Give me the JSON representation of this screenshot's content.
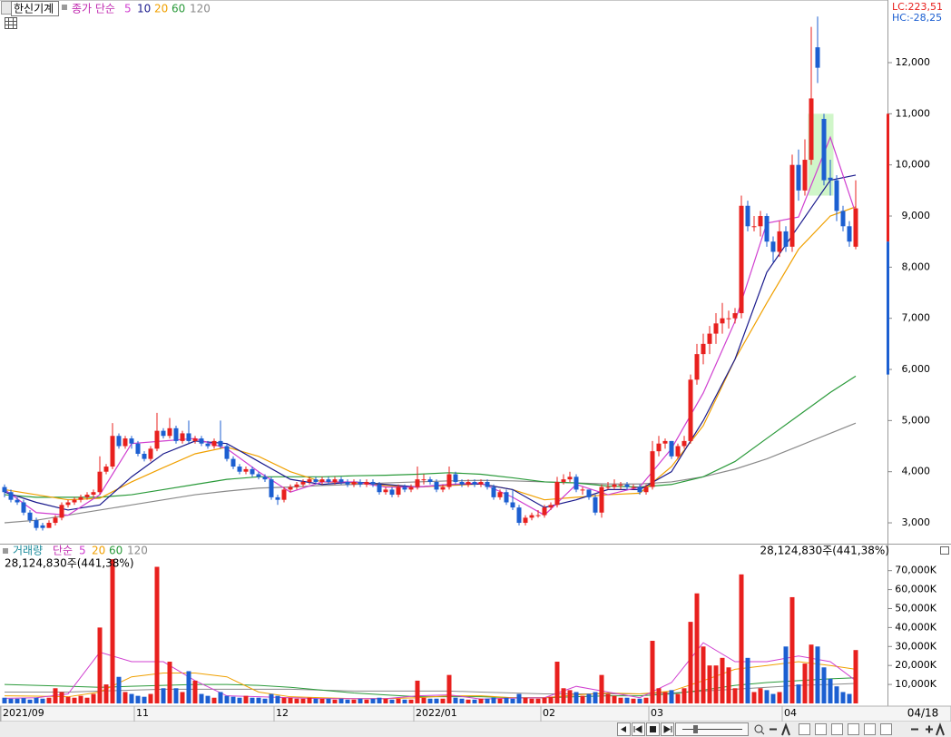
{
  "chart_data": {
    "type": "candlestick",
    "title": "한신기계",
    "ma_label": "종가 단순",
    "up_color": "#e8201e",
    "down_color": "#1c5fd1",
    "open": [
      3700,
      3600,
      3450,
      3400,
      3200,
      3050,
      2950,
      2900,
      3000,
      3100,
      3350,
      3400,
      3450,
      3500,
      3550,
      3600,
      4000,
      4100,
      4700,
      4500,
      4650,
      4550,
      4350,
      4250,
      4450,
      4800,
      4700,
      4850,
      4600,
      4750,
      4600,
      4650,
      4550,
      4500,
      4600,
      4500,
      4250,
      4100,
      4000,
      4050,
      3950,
      3900,
      3850,
      3500,
      3450,
      3650,
      3700,
      3750,
      3800,
      3850,
      3800,
      3850,
      3800,
      3850,
      3800,
      3750,
      3800,
      3750,
      3800,
      3750,
      3600,
      3650,
      3550,
      3700,
      3650,
      3700,
      3850,
      3850,
      3800,
      3650,
      3700,
      3950,
      3800,
      3750,
      3800,
      3750,
      3800,
      3700,
      3500,
      3600,
      3400,
      3300,
      3000,
      3100,
      3150,
      3150,
      3300,
      3350,
      3800,
      3850,
      3900,
      3650,
      3650,
      3500,
      3200,
      3700,
      3700,
      3750,
      3750,
      3700,
      3700,
      3600,
      3700,
      4400,
      4550,
      4600,
      4300,
      4500,
      4600,
      5800,
      6300,
      6500,
      6700,
      6900,
      7000,
      7000,
      7100,
      9200,
      8800,
      8800,
      9000,
      8500,
      8300,
      8700,
      8400,
      10000,
      9500,
      10100,
      12300,
      10900,
      9750,
      9700,
      9100,
      8800,
      8400
    ],
    "high": [
      3750,
      3650,
      3500,
      3450,
      3250,
      3100,
      3000,
      3050,
      3150,
      3400,
      3450,
      3500,
      3550,
      3600,
      3650,
      4300,
      4150,
      4950,
      4750,
      4700,
      4700,
      4600,
      4400,
      4500,
      5150,
      4850,
      5050,
      4900,
      4800,
      5000,
      4700,
      4700,
      4600,
      4650,
      5000,
      4550,
      4300,
      4150,
      4100,
      4100,
      4000,
      3950,
      3900,
      3550,
      3700,
      3750,
      3800,
      3850,
      3900,
      3900,
      3900,
      3900,
      3900,
      3900,
      3850,
      3850,
      3850,
      3850,
      3850,
      3800,
      3700,
      3700,
      3750,
      3750,
      3750,
      4100,
      3950,
      3900,
      3850,
      3750,
      4100,
      4000,
      3850,
      3850,
      3850,
      3850,
      3850,
      3750,
      3650,
      3650,
      3650,
      3350,
      3150,
      3200,
      3250,
      3350,
      3400,
      3900,
      3950,
      4000,
      3950,
      3700,
      3650,
      3550,
      3750,
      3800,
      3850,
      3800,
      3800,
      3750,
      3750,
      3750,
      4600,
      4700,
      4650,
      4600,
      4550,
      4700,
      5900,
      6500,
      6700,
      6850,
      7100,
      7300,
      7150,
      7200,
      9400,
      9300,
      9000,
      9100,
      9050,
      8600,
      8900,
      8800,
      10200,
      10300,
      10500,
      12700,
      12900,
      11000,
      10100,
      9800,
      9200,
      8900,
      9700
    ],
    "low": [
      3500,
      3400,
      3350,
      3150,
      3000,
      2850,
      2850,
      2900,
      2950,
      3050,
      3300,
      3350,
      3400,
      3450,
      3500,
      3550,
      3950,
      4050,
      4450,
      4450,
      4450,
      4300,
      4200,
      4200,
      4400,
      4650,
      4650,
      4550,
      4550,
      4550,
      4550,
      4500,
      4450,
      4450,
      4450,
      4200,
      4050,
      3950,
      3950,
      3900,
      3850,
      3800,
      3450,
      3350,
      3400,
      3600,
      3650,
      3700,
      3750,
      3750,
      3750,
      3750,
      3750,
      3750,
      3700,
      3700,
      3700,
      3700,
      3700,
      3550,
      3550,
      3500,
      3500,
      3600,
      3600,
      3650,
      3750,
      3750,
      3600,
      3600,
      3650,
      3750,
      3700,
      3700,
      3700,
      3700,
      3650,
      3450,
      3450,
      3350,
      3250,
      2950,
      2950,
      3050,
      3100,
      3100,
      3250,
      3300,
      3750,
      3800,
      3600,
      3550,
      3450,
      3150,
      3100,
      3650,
      3650,
      3650,
      3650,
      3650,
      3550,
      3550,
      3650,
      4300,
      4450,
      4250,
      4250,
      4450,
      4550,
      5700,
      6100,
      6300,
      6500,
      6700,
      6800,
      6900,
      7000,
      8700,
      8700,
      8600,
      8400,
      8100,
      8200,
      8300,
      8300,
      9300,
      9400,
      10000,
      11600,
      9600,
      9400,
      8900,
      8700,
      8400,
      8350
    ],
    "close": [
      3600,
      3450,
      3400,
      3200,
      3050,
      2900,
      2900,
      3000,
      3100,
      3350,
      3400,
      3450,
      3500,
      3550,
      3600,
      4000,
      4100,
      4700,
      4500,
      4650,
      4550,
      4350,
      4250,
      4450,
      4800,
      4700,
      4850,
      4600,
      4750,
      4600,
      4650,
      4550,
      4500,
      4600,
      4500,
      4250,
      4100,
      4000,
      4050,
      3950,
      3900,
      3850,
      3500,
      3450,
      3650,
      3700,
      3750,
      3800,
      3850,
      3800,
      3850,
      3800,
      3850,
      3800,
      3750,
      3800,
      3750,
      3800,
      3750,
      3600,
      3650,
      3550,
      3700,
      3650,
      3700,
      3850,
      3850,
      3800,
      3650,
      3700,
      3950,
      3800,
      3750,
      3800,
      3750,
      3800,
      3700,
      3500,
      3600,
      3400,
      3300,
      3000,
      3100,
      3150,
      3150,
      3300,
      3350,
      3800,
      3850,
      3900,
      3650,
      3650,
      3500,
      3200,
      3700,
      3700,
      3750,
      3750,
      3700,
      3700,
      3600,
      3700,
      4400,
      4550,
      4600,
      4300,
      4500,
      4600,
      5800,
      6300,
      6500,
      6700,
      6900,
      7000,
      7000,
      7100,
      9200,
      8800,
      8800,
      9000,
      8500,
      8300,
      8700,
      8400,
      10000,
      9500,
      10100,
      11300,
      11900,
      9700,
      9700,
      9100,
      8800,
      8500,
      9150
    ],
    "ylim": [
      2610,
      13225
    ],
    "yticks": [
      {
        "value": 3000,
        "label": "3,000"
      },
      {
        "value": 4000,
        "label": "4,000"
      },
      {
        "value": 5000,
        "label": "5,000"
      },
      {
        "value": 6000,
        "label": "6,000"
      },
      {
        "value": 7000,
        "label": "7,000"
      },
      {
        "value": 8000,
        "label": "8,000"
      },
      {
        "value": 9000,
        "label": "9,000"
      },
      {
        "value": 10000,
        "label": "10,000"
      },
      {
        "value": 11000,
        "label": "11,000"
      },
      {
        "value": 12000,
        "label": "12,000"
      }
    ],
    "xticks": [
      {
        "value": 0,
        "label": "2021/09"
      },
      {
        "value": 21,
        "label": "11"
      },
      {
        "value": 43,
        "label": "12"
      },
      {
        "value": 65,
        "label": "2022/01"
      },
      {
        "value": 85,
        "label": "02"
      },
      {
        "value": 102,
        "label": "03"
      },
      {
        "value": 123,
        "label": "04"
      }
    ],
    "last_date": "04/18",
    "lc_label": "LC:223,51",
    "hc_label": "HC:-28,25",
    "range_bar": {
      "low": 5900,
      "mid": 8500,
      "high": 11000
    },
    "highlight": {
      "from": 127,
      "to": 130,
      "low": 9400,
      "high": 11000
    },
    "ma_x": [
      0,
      5,
      10,
      15,
      20,
      25,
      30,
      35,
      40,
      45,
      50,
      55,
      60,
      65,
      70,
      75,
      80,
      85,
      90,
      95,
      100,
      105,
      110,
      115,
      120,
      125,
      130,
      134
    ],
    "series": [
      {
        "name": "5",
        "color": "#d040d0",
        "values": [
          3650,
          3200,
          3150,
          3550,
          4550,
          4600,
          4650,
          4450,
          4000,
          3600,
          3800,
          3800,
          3700,
          3700,
          3750,
          3780,
          3500,
          3150,
          3750,
          3550,
          3700,
          4450,
          5540,
          6940,
          8860,
          8980,
          10540,
          9050
        ]
      },
      {
        "name": "10",
        "color": "#1a1a8c",
        "values": [
          3600,
          3400,
          3250,
          3350,
          3900,
          4350,
          4600,
          4550,
          4200,
          3850,
          3750,
          3800,
          3750,
          3700,
          3750,
          3760,
          3650,
          3300,
          3450,
          3650,
          3650,
          4000,
          5000,
          6200,
          7900,
          8800,
          9700,
          9800
        ]
      },
      {
        "name": "20",
        "color": "#f0a000",
        "values": [
          3650,
          3550,
          3450,
          3480,
          3800,
          4080,
          4350,
          4480,
          4300,
          4000,
          3800,
          3780,
          3730,
          3700,
          3730,
          3760,
          3650,
          3450,
          3500,
          3550,
          3580,
          4100,
          4900,
          6200,
          7300,
          8350,
          9000,
          9180
        ]
      },
      {
        "name": "60",
        "color": "#2a9a3a",
        "values": [
          3550,
          3500,
          3500,
          3500,
          3550,
          3650,
          3750,
          3850,
          3900,
          3900,
          3900,
          3920,
          3930,
          3950,
          3980,
          3950,
          3880,
          3800,
          3780,
          3720,
          3700,
          3750,
          3900,
          4200,
          4650,
          5100,
          5550,
          5870
        ]
      },
      {
        "name": "120",
        "color": "#8a8a8a",
        "values": [
          3000,
          3050,
          3150,
          3250,
          3350,
          3450,
          3550,
          3620,
          3680,
          3700,
          3730,
          3750,
          3780,
          3800,
          3820,
          3830,
          3820,
          3800,
          3780,
          3760,
          3760,
          3800,
          3900,
          4050,
          4250,
          4500,
          4750,
          4950
        ]
      }
    ],
    "volume": {
      "type": "bar",
      "label": "거래량",
      "ma_label": "단순",
      "summary": "28,124,830주(441,38%)",
      "values": [
        3000,
        2500,
        2500,
        2800,
        2000,
        3000,
        2500,
        3000,
        8000,
        6000,
        3500,
        3000,
        4000,
        3000,
        5000,
        40000,
        10000,
        76000,
        14000,
        6000,
        5000,
        4000,
        3500,
        5000,
        72000,
        8000,
        22000,
        8000,
        6000,
        17000,
        12000,
        5000,
        4000,
        3000,
        6000,
        4000,
        3500,
        3000,
        4000,
        3000,
        3000,
        2500,
        5000,
        4000,
        3000,
        3000,
        2500,
        2500,
        3000,
        2500,
        2500,
        2500,
        2000,
        2500,
        2000,
        2000,
        2500,
        2000,
        2500,
        3000,
        2500,
        2000,
        2500,
        2000,
        2000,
        12000,
        3000,
        2500,
        2500,
        2500,
        15000,
        3000,
        2500,
        2000,
        2000,
        2500,
        2500,
        3000,
        2500,
        3000,
        2500,
        5000,
        3000,
        2500,
        2500,
        3000,
        3500,
        22000,
        8000,
        7000,
        6000,
        4000,
        5000,
        6000,
        15000,
        5000,
        4000,
        3000,
        3000,
        2500,
        2500,
        3000,
        33000,
        8000,
        6000,
        7000,
        5000,
        8000,
        43000,
        58000,
        30000,
        20000,
        20000,
        24000,
        19000,
        8000,
        68000,
        24000,
        6000,
        8000,
        7000,
        5000,
        6000,
        30000,
        56000,
        10000,
        21000,
        31000,
        30000,
        19000,
        13000,
        9000,
        6000,
        5000,
        28125
      ],
      "ylim": [
        0,
        77500
      ],
      "yticks": [
        {
          "value": 10000,
          "label": "10,000K"
        },
        {
          "value": 20000,
          "label": "20,000K"
        },
        {
          "value": 30000,
          "label": "30,000K"
        },
        {
          "value": 40000,
          "label": "40,000K"
        },
        {
          "value": 50000,
          "label": "50,000K"
        },
        {
          "value": 60000,
          "label": "60,000K"
        },
        {
          "value": 70000,
          "label": "70,000K"
        }
      ],
      "series": [
        {
          "name": "5",
          "color": "#d040d0",
          "values": [
            2700,
            3000,
            5000,
            27000,
            22000,
            22000,
            12000,
            4000,
            3500,
            3000,
            2500,
            2500,
            2500,
            4000,
            4500,
            2300,
            2800,
            3000,
            9000,
            6000,
            3000,
            11000,
            32000,
            22000,
            22000,
            25000,
            22000,
            12000
          ]
        },
        {
          "name": "20",
          "color": "#f0a000",
          "values": [
            4000,
            3800,
            3500,
            6000,
            14000,
            16000,
            16000,
            14000,
            6000,
            3500,
            3000,
            2500,
            2500,
            3000,
            4000,
            4000,
            3000,
            3000,
            4500,
            5500,
            5000,
            6500,
            12000,
            18000,
            20000,
            22000,
            20000,
            18000
          ]
        },
        {
          "name": "60",
          "color": "#2a9a3a",
          "values": [
            10000,
            9500,
            9000,
            8500,
            9000,
            9500,
            10000,
            10000,
            9500,
            8500,
            7000,
            5500,
            4500,
            3500,
            3500,
            3500,
            3000,
            3000,
            3500,
            4000,
            4000,
            5000,
            7000,
            9500,
            11000,
            12000,
            13000,
            13500
          ]
        },
        {
          "name": "120",
          "color": "#8a8a8a",
          "values": [
            6000,
            6000,
            6000,
            6500,
            7000,
            7500,
            7500,
            7500,
            7500,
            7500,
            7000,
            6500,
            6500,
            6500,
            6500,
            6000,
            5500,
            5000,
            5000,
            5000,
            5000,
            5500,
            6500,
            7500,
            8500,
            9500,
            10000,
            10500
          ]
        }
      ]
    }
  }
}
